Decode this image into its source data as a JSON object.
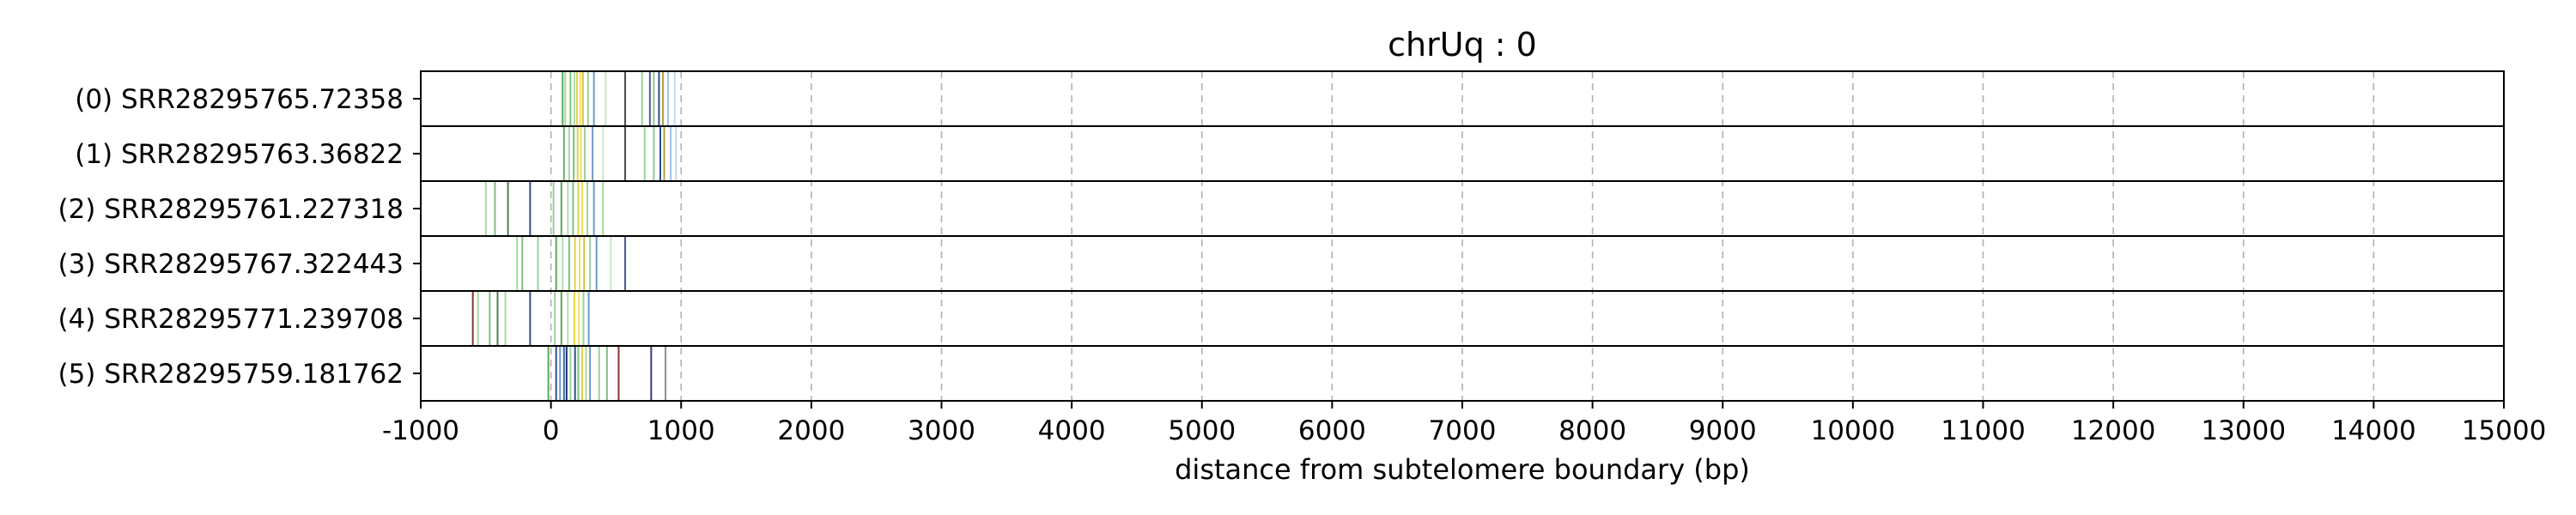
{
  "chart_data": {
    "type": "table",
    "title": "chrUq : 0",
    "xlabel": "distance from subtelomere boundary (bp)",
    "xlim": [
      -1000,
      15000
    ],
    "xticks": [
      -1000,
      0,
      1000,
      2000,
      3000,
      4000,
      5000,
      6000,
      7000,
      8000,
      9000,
      10000,
      11000,
      12000,
      13000,
      14000,
      15000
    ],
    "grid": "vertical dashed",
    "rows": [
      {
        "label": "(0) SRR28295765.72358",
        "marks": [
          {
            "x": 90,
            "color": "#5aa85a"
          },
          {
            "x": 110,
            "color": "#a8d8a0"
          },
          {
            "x": 150,
            "color": "#7fbf7f"
          },
          {
            "x": 180,
            "color": "#b0dcb0"
          },
          {
            "x": 200,
            "color": "#e3d24a"
          },
          {
            "x": 225,
            "color": "#f0e060"
          },
          {
            "x": 245,
            "color": "#d8c040"
          },
          {
            "x": 285,
            "color": "#9ccf9c"
          },
          {
            "x": 330,
            "color": "#6a9ac8"
          },
          {
            "x": 420,
            "color": "#c8e6c8"
          },
          {
            "x": 570,
            "color": "#4a4a4a"
          },
          {
            "x": 700,
            "color": "#9fd09f"
          },
          {
            "x": 760,
            "color": "#5a5a9a"
          },
          {
            "x": 790,
            "color": "#8fc88f"
          },
          {
            "x": 830,
            "color": "#2f4f8f"
          },
          {
            "x": 860,
            "color": "#b0a040"
          },
          {
            "x": 900,
            "color": "#a0c0e0"
          },
          {
            "x": 950,
            "color": "#c0d8f0"
          }
        ]
      },
      {
        "label": "(1) SRR28295763.36822",
        "marks": [
          {
            "x": 100,
            "color": "#6ab06a"
          },
          {
            "x": 140,
            "color": "#a8d8a0"
          },
          {
            "x": 175,
            "color": "#7fbf7f"
          },
          {
            "x": 205,
            "color": "#e3d24a"
          },
          {
            "x": 230,
            "color": "#f0e060"
          },
          {
            "x": 260,
            "color": "#9ccf9c"
          },
          {
            "x": 320,
            "color": "#6a9ac8"
          },
          {
            "x": 400,
            "color": "#c8e6c8"
          },
          {
            "x": 570,
            "color": "#4a4a4a"
          },
          {
            "x": 720,
            "color": "#9fd09f"
          },
          {
            "x": 790,
            "color": "#8fc88f"
          },
          {
            "x": 840,
            "color": "#2f4f8f"
          },
          {
            "x": 870,
            "color": "#b0a040"
          },
          {
            "x": 920,
            "color": "#a0c0e0"
          },
          {
            "x": 960,
            "color": "#c0d8f0"
          }
        ]
      },
      {
        "label": "(2) SRR28295761.227318",
        "marks": [
          {
            "x": -500,
            "color": "#a8d8a0"
          },
          {
            "x": -430,
            "color": "#7fbf7f"
          },
          {
            "x": -330,
            "color": "#4f7f4f"
          },
          {
            "x": -160,
            "color": "#2f4f8f"
          },
          {
            "x": 20,
            "color": "#9ccf9c"
          },
          {
            "x": 80,
            "color": "#5aa85a"
          },
          {
            "x": 130,
            "color": "#b0dcb0"
          },
          {
            "x": 170,
            "color": "#7fbf7f"
          },
          {
            "x": 210,
            "color": "#e3d24a"
          },
          {
            "x": 240,
            "color": "#f0e060"
          },
          {
            "x": 280,
            "color": "#9ccf9c"
          },
          {
            "x": 330,
            "color": "#6a9ac8"
          },
          {
            "x": 400,
            "color": "#a8d8a0"
          }
        ]
      },
      {
        "label": "(3) SRR28295767.322443",
        "marks": [
          {
            "x": -260,
            "color": "#a8d8a0"
          },
          {
            "x": -220,
            "color": "#7fbf7f"
          },
          {
            "x": -100,
            "color": "#9ccf9c"
          },
          {
            "x": 40,
            "color": "#5aa85a"
          },
          {
            "x": 90,
            "color": "#b0dcb0"
          },
          {
            "x": 140,
            "color": "#7fbf7f"
          },
          {
            "x": 185,
            "color": "#e3d24a"
          },
          {
            "x": 220,
            "color": "#f0e060"
          },
          {
            "x": 255,
            "color": "#d8c040"
          },
          {
            "x": 300,
            "color": "#9ccf9c"
          },
          {
            "x": 350,
            "color": "#6a9ac8"
          },
          {
            "x": 460,
            "color": "#c8e6c8"
          },
          {
            "x": 570,
            "color": "#4a5a8a"
          }
        ]
      },
      {
        "label": "(4) SRR28295771.239708",
        "marks": [
          {
            "x": -600,
            "color": "#8a3030"
          },
          {
            "x": -560,
            "color": "#a8d8a0"
          },
          {
            "x": -470,
            "color": "#7fbf7f"
          },
          {
            "x": -410,
            "color": "#4f7f4f"
          },
          {
            "x": -350,
            "color": "#a8d8a0"
          },
          {
            "x": -160,
            "color": "#2f4f8f"
          },
          {
            "x": 30,
            "color": "#9ccf9c"
          },
          {
            "x": 80,
            "color": "#5aa85a"
          },
          {
            "x": 130,
            "color": "#b0dcb0"
          },
          {
            "x": 180,
            "color": "#e3d24a"
          },
          {
            "x": 215,
            "color": "#f0e060"
          },
          {
            "x": 250,
            "color": "#9ccf9c"
          },
          {
            "x": 290,
            "color": "#6a9ac8"
          }
        ]
      },
      {
        "label": "(5) SRR28295759.181762",
        "marks": [
          {
            "x": -20,
            "color": "#5aa85a"
          },
          {
            "x": 40,
            "color": "#2f4f8f"
          },
          {
            "x": 70,
            "color": "#6a9ac8"
          },
          {
            "x": 100,
            "color": "#3a6aa8"
          },
          {
            "x": 120,
            "color": "#1f2f6f"
          },
          {
            "x": 150,
            "color": "#9ccf9c"
          },
          {
            "x": 185,
            "color": "#2f4f8f"
          },
          {
            "x": 210,
            "color": "#7fbf7f"
          },
          {
            "x": 240,
            "color": "#e3d24a"
          },
          {
            "x": 270,
            "color": "#a8d8a0"
          },
          {
            "x": 300,
            "color": "#6a9ac8"
          },
          {
            "x": 370,
            "color": "#9fd09f"
          },
          {
            "x": 430,
            "color": "#7fbf7f"
          },
          {
            "x": 520,
            "color": "#8a3030"
          },
          {
            "x": 770,
            "color": "#3a3a7a"
          },
          {
            "x": 880,
            "color": "#8f8f8f"
          }
        ]
      }
    ]
  }
}
